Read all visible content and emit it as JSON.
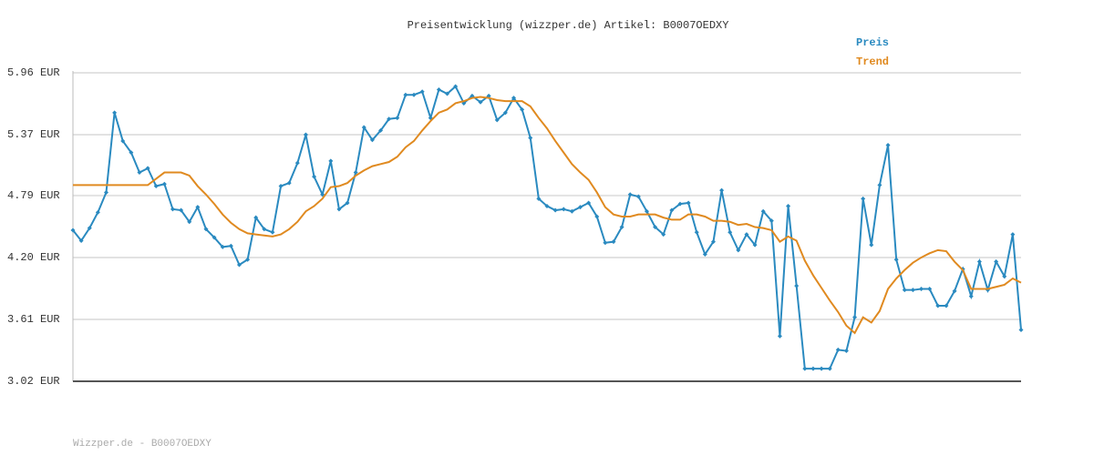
{
  "chart_data": {
    "type": "line",
    "title": "Preisentwicklung (wizzper.de) Artikel: B0007OEDXY",
    "footer": "Wizzper.de - B0007OEDXY",
    "ylim": [
      3.02,
      5.96
    ],
    "yticks": [
      {
        "value": 3.02,
        "label": "3.02 EUR"
      },
      {
        "value": 3.61,
        "label": "3.61 EUR"
      },
      {
        "value": 4.2,
        "label": "4.20 EUR"
      },
      {
        "value": 4.79,
        "label": "4.79 EUR"
      },
      {
        "value": 5.37,
        "label": "5.37 EUR"
      },
      {
        "value": 5.96,
        "label": "5.96 EUR"
      }
    ],
    "grid": true,
    "series": [
      {
        "name": "Preis",
        "color": "#2a8ac0",
        "markers": true,
        "values": [
          4.46,
          4.36,
          4.48,
          4.63,
          4.82,
          5.58,
          5.31,
          5.2,
          5.01,
          5.05,
          4.88,
          4.9,
          4.66,
          4.65,
          4.54,
          4.68,
          4.47,
          4.39,
          4.3,
          4.31,
          4.13,
          4.18,
          4.58,
          4.47,
          4.44,
          4.88,
          4.91,
          5.1,
          5.37,
          4.97,
          4.8,
          5.12,
          4.66,
          4.72,
          5.01,
          5.44,
          5.32,
          5.41,
          5.52,
          5.53,
          5.75,
          5.75,
          5.78,
          5.53,
          5.8,
          5.76,
          5.83,
          5.67,
          5.74,
          5.68,
          5.74,
          5.51,
          5.58,
          5.72,
          5.61,
          5.34,
          4.76,
          4.69,
          4.65,
          4.66,
          4.64,
          4.68,
          4.72,
          4.59,
          4.34,
          4.35,
          4.49,
          4.8,
          4.78,
          4.64,
          4.49,
          4.42,
          4.65,
          4.71,
          4.72,
          4.44,
          4.23,
          4.35,
          4.84,
          4.44,
          4.27,
          4.42,
          4.32,
          4.64,
          4.55,
          3.45,
          4.69,
          3.93,
          3.14,
          3.14,
          3.14,
          3.14,
          3.32,
          3.31,
          3.63,
          4.76,
          4.32,
          4.89,
          5.27,
          4.18,
          3.89,
          3.89,
          3.9,
          3.9,
          3.74,
          3.74,
          3.88,
          4.09,
          3.83,
          4.16,
          3.89,
          4.16,
          4.02,
          4.42,
          3.51
        ]
      },
      {
        "name": "Trend",
        "color": "#e08a20",
        "markers": false,
        "values": [
          4.89,
          4.89,
          4.89,
          4.89,
          4.89,
          4.89,
          4.89,
          4.89,
          4.89,
          4.89,
          4.95,
          5.01,
          5.01,
          5.01,
          4.98,
          4.88,
          4.8,
          4.71,
          4.61,
          4.53,
          4.47,
          4.43,
          4.42,
          4.41,
          4.4,
          4.42,
          4.47,
          4.54,
          4.64,
          4.69,
          4.76,
          4.87,
          4.88,
          4.91,
          4.98,
          5.03,
          5.07,
          5.09,
          5.11,
          5.16,
          5.25,
          5.31,
          5.41,
          5.5,
          5.58,
          5.61,
          5.67,
          5.69,
          5.72,
          5.73,
          5.72,
          5.7,
          5.69,
          5.69,
          5.69,
          5.64,
          5.53,
          5.43,
          5.31,
          5.2,
          5.09,
          5.01,
          4.94,
          4.82,
          4.68,
          4.61,
          4.59,
          4.59,
          4.61,
          4.61,
          4.61,
          4.58,
          4.56,
          4.56,
          4.61,
          4.61,
          4.59,
          4.55,
          4.55,
          4.54,
          4.51,
          4.52,
          4.49,
          4.48,
          4.46,
          4.35,
          4.4,
          4.36,
          4.17,
          4.03,
          3.91,
          3.79,
          3.68,
          3.55,
          3.48,
          3.63,
          3.58,
          3.69,
          3.9,
          4.0,
          4.08,
          4.15,
          4.2,
          4.24,
          4.27,
          4.26,
          4.16,
          4.08,
          3.9,
          3.9,
          3.9,
          3.92,
          3.94,
          4.0,
          3.96
        ]
      }
    ]
  }
}
